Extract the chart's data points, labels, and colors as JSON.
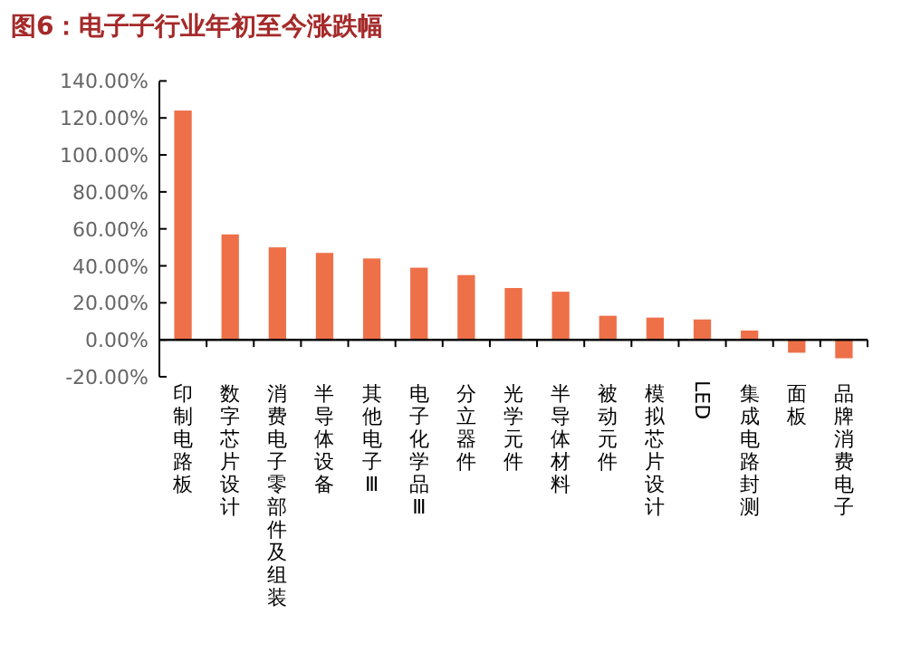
{
  "chart_data": {
    "type": "bar",
    "title": "图6：电子子行业年初至今涨跌幅",
    "categories": [
      "印制电路板",
      "数字芯片设计",
      "消费电子零部件及组装",
      "半导体设备",
      "其他电子Ⅲ",
      "电子化学品Ⅲ",
      "分立器件",
      "光学元件",
      "半导体材料",
      "被动元件",
      "模拟芯片设计",
      "LED",
      "集成电路封测",
      "面板",
      "品牌消费电子"
    ],
    "series": [
      {
        "color": "#ee7049",
        "values": [
          124,
          57,
          50,
          47,
          44,
          39,
          35,
          28,
          26,
          13,
          12,
          11,
          5,
          -7,
          -10
        ]
      }
    ],
    "ylim": [
      -20,
      140
    ],
    "yticks": [
      {
        "value": -20,
        "label": "-20.00%"
      },
      {
        "value": 0,
        "label": "0.00%"
      },
      {
        "value": 20,
        "label": "20.00%"
      },
      {
        "value": 40,
        "label": "40.00%"
      },
      {
        "value": 60,
        "label": "60.00%"
      },
      {
        "value": 80,
        "label": "80.00%"
      },
      {
        "value": 100,
        "label": "100.00%"
      },
      {
        "value": 120,
        "label": "120.00%"
      },
      {
        "value": 140,
        "label": "140.00%"
      }
    ],
    "grid": false
  }
}
